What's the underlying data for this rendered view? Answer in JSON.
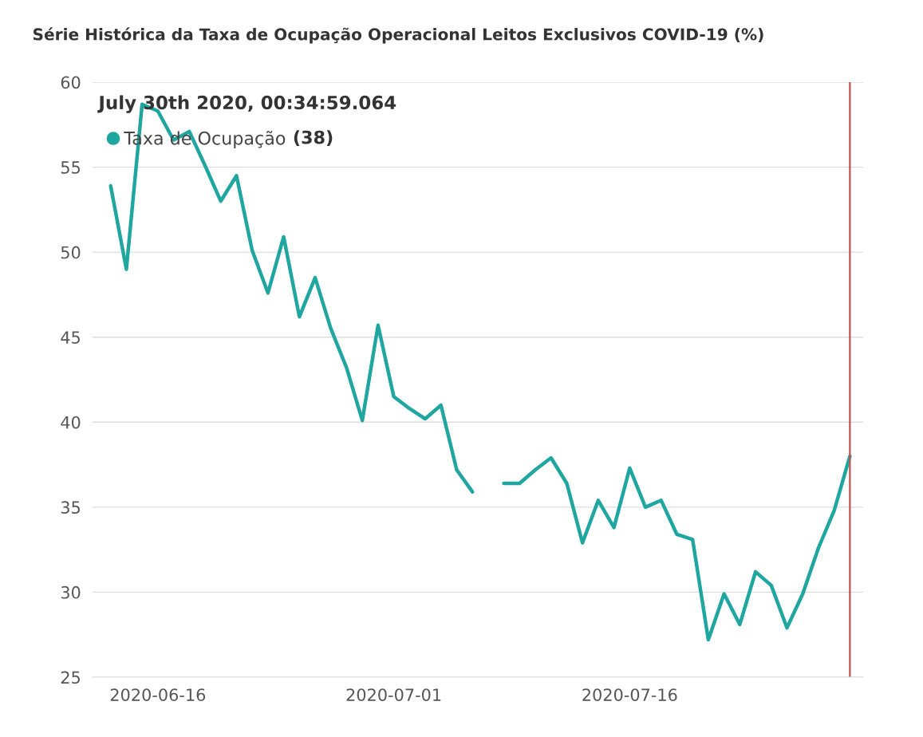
{
  "chart_data": {
    "type": "line",
    "title": "Série Histórica da Taxa de Ocupação Operacional Leitos Exclusivos COVID-19 (%)",
    "x": [
      "2020-06-13",
      "2020-06-14",
      "2020-06-15",
      "2020-06-16",
      "2020-06-17",
      "2020-06-18",
      "2020-06-19",
      "2020-06-20",
      "2020-06-21",
      "2020-06-22",
      "2020-06-23",
      "2020-06-24",
      "2020-06-25",
      "2020-06-26",
      "2020-06-27",
      "2020-06-28",
      "2020-06-29",
      "2020-06-30",
      "2020-07-01",
      "2020-07-02",
      "2020-07-03",
      "2020-07-04",
      "2020-07-05",
      "2020-07-06",
      "2020-07-07",
      "2020-07-08",
      "2020-07-09",
      "2020-07-10",
      "2020-07-11",
      "2020-07-12",
      "2020-07-13",
      "2020-07-14",
      "2020-07-15",
      "2020-07-16",
      "2020-07-17",
      "2020-07-18",
      "2020-07-19",
      "2020-07-20",
      "2020-07-21",
      "2020-07-22",
      "2020-07-23",
      "2020-07-24",
      "2020-07-25",
      "2020-07-26",
      "2020-07-27",
      "2020-07-28",
      "2020-07-29",
      "2020-07-30"
    ],
    "series": [
      {
        "name": "Taxa de Ocupação",
        "color": "#1fa6a0",
        "values": [
          53.9,
          49.0,
          58.7,
          58.3,
          56.6,
          57.1,
          55.1,
          53.0,
          54.5,
          50.1,
          47.6,
          50.9,
          46.2,
          48.5,
          45.5,
          43.2,
          40.1,
          45.7,
          41.5,
          40.8,
          40.2,
          41.0,
          37.2,
          35.9,
          null,
          36.4,
          36.4,
          37.2,
          37.9,
          36.4,
          32.9,
          35.4,
          33.8,
          37.3,
          35.0,
          35.4,
          33.4,
          33.1,
          27.2,
          29.9,
          28.1,
          31.2,
          30.4,
          27.9,
          29.9,
          32.6,
          34.8,
          38
        ]
      }
    ],
    "xlim": [
      "2020-06-11T20:00",
      "2020-07-30T20:00"
    ],
    "xticks": [
      "2020-06-16",
      "2020-07-01",
      "2020-07-16"
    ],
    "ylim": [
      25,
      60
    ],
    "yticks": [
      25,
      30,
      35,
      40,
      45,
      50,
      55,
      60
    ],
    "grid": "y",
    "legend": "top left",
    "marker": "none",
    "line_style": "solid",
    "ref_lines": [
      {
        "axis": "x",
        "value": "2020-07-30",
        "label": null,
        "color": "#c0504d"
      }
    ],
    "annotations": [
      "July 30th 2020, 00:34:59.064",
      "(38)"
    ]
  }
}
